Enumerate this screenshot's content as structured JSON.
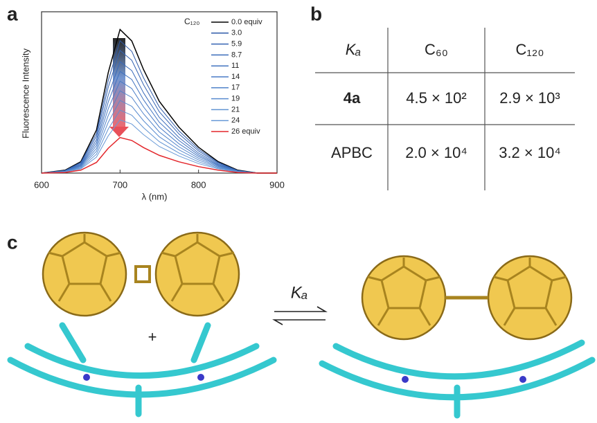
{
  "panel_labels": [
    "a",
    "b",
    "c"
  ],
  "chart_data": {
    "type": "line",
    "xlabel": "λ (nm)",
    "ylabel": "Fluorescence Intensity",
    "legend_title": "C₁₂₀",
    "x": [
      600,
      630,
      650,
      670,
      685,
      700,
      715,
      730,
      750,
      775,
      800,
      825,
      850,
      875,
      900
    ],
    "xlim": [
      600,
      900
    ],
    "xticks": [
      600,
      700,
      800,
      900
    ],
    "ylim": [
      0,
      100
    ],
    "series": [
      {
        "name": "0.0 equiv",
        "color": "#000000",
        "values": [
          0,
          1.8,
          7.1,
          26.7,
          62.3,
          89,
          81.9,
          64.1,
          44.5,
          28.5,
          16,
          7.1,
          1.8,
          0,
          0
        ]
      },
      {
        "name": "3.0",
        "color": "#2e5aa8",
        "values": [
          0,
          1.6,
          6.6,
          24.6,
          57.4,
          82,
          75.4,
          59,
          41,
          26.2,
          14.8,
          6.6,
          1.6,
          0,
          0
        ]
      },
      {
        "name": "5.9",
        "color": "#3463b2",
        "values": [
          0,
          1.5,
          6.1,
          22.8,
          53.2,
          76,
          69.9,
          54.7,
          38,
          24.3,
          13.7,
          6.1,
          1.5,
          0,
          0
        ]
      },
      {
        "name": "8.7",
        "color": "#3a6bba",
        "values": [
          0,
          1.4,
          5.5,
          20.7,
          48.3,
          69,
          63.5,
          49.7,
          34.5,
          22.1,
          12.4,
          5.5,
          1.4,
          0,
          0
        ]
      },
      {
        "name": "11",
        "color": "#4173c0",
        "values": [
          0,
          1.3,
          5,
          18.9,
          44.1,
          63,
          58,
          45.4,
          31.5,
          20.2,
          11.3,
          5,
          1.3,
          0,
          0
        ]
      },
      {
        "name": "14",
        "color": "#487bc6",
        "values": [
          0,
          1.1,
          4.6,
          17.1,
          39.9,
          57,
          52.4,
          41,
          28.5,
          18.2,
          10.3,
          4.6,
          1.1,
          0,
          0
        ]
      },
      {
        "name": "17",
        "color": "#5083ca",
        "values": [
          0,
          1,
          4.1,
          15.3,
          35.7,
          51,
          46.9,
          36.7,
          25.5,
          16.3,
          9.2,
          4.1,
          1,
          0,
          0
        ]
      },
      {
        "name": "19",
        "color": "#588bcf",
        "values": [
          0,
          0.9,
          3.6,
          13.5,
          31.5,
          45,
          41.4,
          32.4,
          22.5,
          14.4,
          8.1,
          3.6,
          0.9,
          0,
          0
        ]
      },
      {
        "name": "21",
        "color": "#6093d3",
        "values": [
          0,
          0.8,
          3.1,
          11.7,
          27.3,
          39,
          35.9,
          28.1,
          19.5,
          12.5,
          7,
          3.1,
          0.8,
          0,
          0
        ]
      },
      {
        "name": "24",
        "color": "#689ad7",
        "values": [
          0,
          0.7,
          2.6,
          9.9,
          23.1,
          33,
          30.4,
          23.8,
          16.5,
          10.6,
          5.9,
          2.6,
          0.7,
          0,
          0
        ]
      },
      {
        "name": "26 equiv",
        "color": "#e3262b",
        "values": [
          0,
          0.4,
          1.8,
          6.6,
          15.4,
          22,
          20.2,
          15.8,
          11,
          7,
          4,
          1.8,
          0.4,
          0,
          0
        ]
      }
    ]
  },
  "table": {
    "header": [
      "Kₐ",
      "C₆₀",
      "C₁₂₀"
    ],
    "rows": [
      [
        "4a",
        "4.5 × 10²",
        "2.9 × 10³"
      ],
      [
        "APBC",
        "2.0 × 10⁴",
        "3.2 × 10⁴"
      ]
    ]
  },
  "scheme": {
    "plus": "+",
    "constant": "Kₐ"
  }
}
